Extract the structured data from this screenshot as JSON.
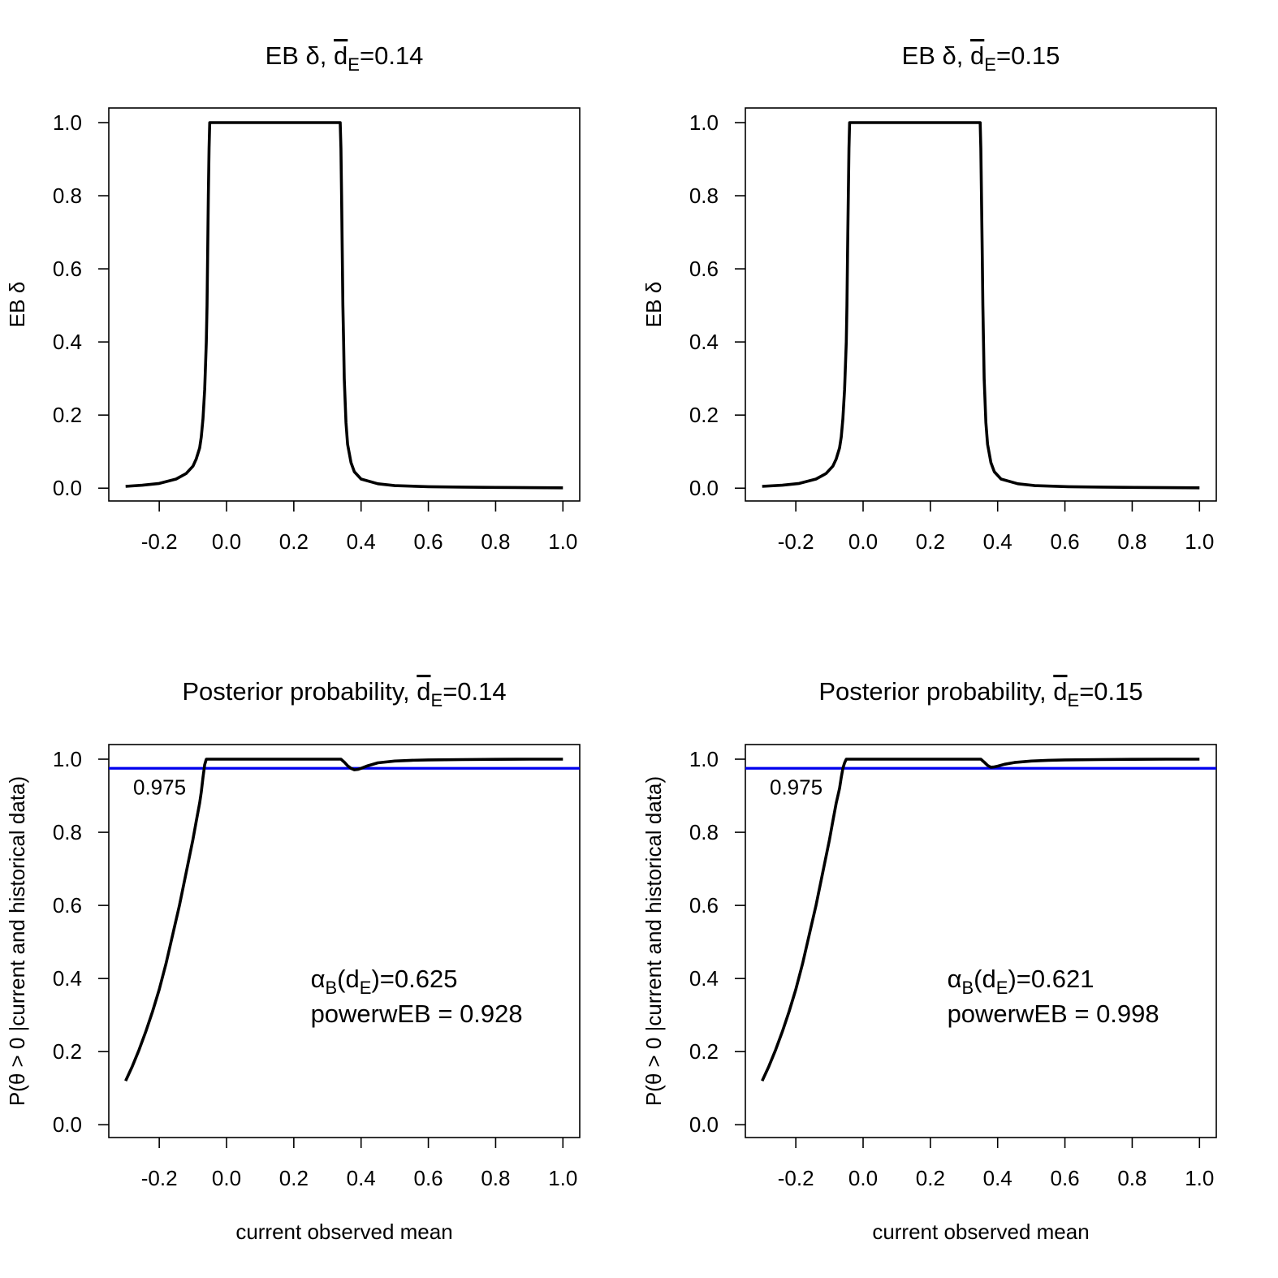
{
  "figure_title": "EB weight and posterior probability versus current observed mean",
  "chart_data": [
    {
      "id": "eb-014",
      "type": "line",
      "title_prefix": "EB δ, ",
      "title_var": "d",
      "title_sub": "E",
      "title_value": "=0.14",
      "xlabel": "",
      "ylabel": "EB δ",
      "xlim": [
        -0.35,
        1.05
      ],
      "ylim": [
        -0.035,
        1.04
      ],
      "xticks": [
        "-0.2",
        "0.0",
        "0.2",
        "0.4",
        "0.6",
        "0.8",
        "1.0"
      ],
      "yticks": [
        "0.0",
        "0.2",
        "0.4",
        "0.6",
        "0.8",
        "1.0"
      ],
      "series": [
        {
          "name": "EB delta",
          "color": "#000000",
          "x": [
            -0.3,
            -0.25,
            -0.2,
            -0.15,
            -0.12,
            -0.1,
            -0.09,
            -0.08,
            -0.075,
            -0.07,
            -0.065,
            -0.06,
            -0.058,
            -0.056,
            -0.054,
            -0.052,
            -0.05,
            0.0,
            0.1,
            0.2,
            0.3,
            0.338,
            0.34,
            0.342,
            0.344,
            0.346,
            0.348,
            0.35,
            0.355,
            0.36,
            0.37,
            0.38,
            0.4,
            0.45,
            0.5,
            0.6,
            0.7,
            0.8,
            0.9,
            1.0
          ],
          "y": [
            0.005,
            0.008,
            0.013,
            0.025,
            0.04,
            0.06,
            0.08,
            0.11,
            0.14,
            0.19,
            0.27,
            0.4,
            0.5,
            0.65,
            0.8,
            0.93,
            1.0,
            1.0,
            1.0,
            1.0,
            1.0,
            1.0,
            0.93,
            0.8,
            0.65,
            0.5,
            0.4,
            0.3,
            0.18,
            0.12,
            0.07,
            0.045,
            0.025,
            0.012,
            0.007,
            0.004,
            0.003,
            0.002,
            0.0015,
            0.001
          ]
        }
      ]
    },
    {
      "id": "eb-015",
      "type": "line",
      "title_prefix": "EB δ, ",
      "title_var": "d",
      "title_sub": "E",
      "title_value": "=0.15",
      "xlabel": "",
      "ylabel": "EB δ",
      "xlim": [
        -0.35,
        1.05
      ],
      "ylim": [
        -0.035,
        1.04
      ],
      "xticks": [
        "-0.2",
        "0.0",
        "0.2",
        "0.4",
        "0.6",
        "0.8",
        "1.0"
      ],
      "yticks": [
        "0.0",
        "0.2",
        "0.4",
        "0.6",
        "0.8",
        "1.0"
      ],
      "series": [
        {
          "name": "EB delta",
          "color": "#000000",
          "x": [
            -0.3,
            -0.24,
            -0.19,
            -0.14,
            -0.11,
            -0.09,
            -0.08,
            -0.07,
            -0.065,
            -0.06,
            -0.055,
            -0.05,
            -0.048,
            -0.046,
            -0.044,
            -0.042,
            -0.04,
            0.0,
            0.1,
            0.2,
            0.3,
            0.348,
            0.35,
            0.352,
            0.354,
            0.356,
            0.358,
            0.36,
            0.365,
            0.37,
            0.38,
            0.39,
            0.41,
            0.46,
            0.51,
            0.61,
            0.71,
            0.81,
            0.91,
            1.0
          ],
          "y": [
            0.005,
            0.008,
            0.013,
            0.025,
            0.04,
            0.06,
            0.08,
            0.11,
            0.14,
            0.19,
            0.27,
            0.4,
            0.5,
            0.65,
            0.8,
            0.93,
            1.0,
            1.0,
            1.0,
            1.0,
            1.0,
            1.0,
            0.93,
            0.8,
            0.65,
            0.5,
            0.4,
            0.3,
            0.18,
            0.12,
            0.07,
            0.045,
            0.025,
            0.012,
            0.007,
            0.004,
            0.003,
            0.002,
            0.0015,
            0.001
          ]
        }
      ]
    },
    {
      "id": "post-014",
      "type": "line",
      "title_prefix": "Posterior probability, ",
      "title_var": "d",
      "title_sub": "E",
      "title_value": "=0.14",
      "xlabel": "current observed mean",
      "ylabel": "P(θ > 0 |current and historical data)",
      "xlim": [
        -0.35,
        1.05
      ],
      "ylim": [
        -0.035,
        1.04
      ],
      "xticks": [
        "-0.2",
        "0.0",
        "0.2",
        "0.4",
        "0.6",
        "0.8",
        "1.0"
      ],
      "yticks": [
        "0.0",
        "0.2",
        "0.4",
        "0.6",
        "0.8",
        "1.0"
      ],
      "threshold": {
        "value": 0.975,
        "label": "0.975",
        "color": "#0000ee"
      },
      "annotations": {
        "alpha_greek": "α",
        "alpha_sub1": "B",
        "alpha_paren_open": "(d",
        "alpha_sub2": "E",
        "alpha_value": ")=0.625",
        "alpha_color": "#ff0000",
        "power_text": "powerwEB =  0.928",
        "power_color": "#00ee00"
      },
      "series": [
        {
          "name": "posterior probability",
          "color": "#000000",
          "x": [
            -0.3,
            -0.28,
            -0.26,
            -0.24,
            -0.22,
            -0.2,
            -0.18,
            -0.16,
            -0.14,
            -0.12,
            -0.1,
            -0.09,
            -0.08,
            -0.075,
            -0.07,
            -0.065,
            -0.06,
            0.0,
            0.1,
            0.2,
            0.3,
            0.34,
            0.35,
            0.36,
            0.37,
            0.38,
            0.39,
            0.4,
            0.42,
            0.45,
            0.5,
            0.55,
            0.6,
            0.7,
            0.8,
            0.9,
            1.0
          ],
          "y": [
            0.12,
            0.16,
            0.205,
            0.255,
            0.31,
            0.37,
            0.44,
            0.52,
            0.6,
            0.69,
            0.78,
            0.83,
            0.88,
            0.91,
            0.95,
            0.985,
            1.0,
            1.0,
            1.0,
            1.0,
            1.0,
            1.0,
            0.992,
            0.982,
            0.975,
            0.971,
            0.972,
            0.975,
            0.982,
            0.99,
            0.995,
            0.997,
            0.998,
            0.999,
            0.9995,
            1.0,
            1.0
          ]
        }
      ]
    },
    {
      "id": "post-015",
      "type": "line",
      "title_prefix": "Posterior probability, ",
      "title_var": "d",
      "title_sub": "E",
      "title_value": "=0.15",
      "xlabel": "current observed mean",
      "ylabel": "P(θ > 0 |current and historical data)",
      "xlim": [
        -0.35,
        1.05
      ],
      "ylim": [
        -0.035,
        1.04
      ],
      "xticks": [
        "-0.2",
        "0.0",
        "0.2",
        "0.4",
        "0.6",
        "0.8",
        "1.0"
      ],
      "yticks": [
        "0.0",
        "0.2",
        "0.4",
        "0.6",
        "0.8",
        "1.0"
      ],
      "threshold": {
        "value": 0.975,
        "label": "0.975",
        "color": "#0000ee"
      },
      "annotations": {
        "alpha_greek": "α",
        "alpha_sub1": "B",
        "alpha_paren_open": "(d",
        "alpha_sub2": "E",
        "alpha_value": ")=0.621",
        "alpha_color": "#ff0000",
        "power_text": "powerwEB =  0.998",
        "power_color": "#00ee00"
      },
      "series": [
        {
          "name": "posterior probability",
          "color": "#000000",
          "x": [
            -0.3,
            -0.28,
            -0.26,
            -0.24,
            -0.22,
            -0.2,
            -0.18,
            -0.16,
            -0.14,
            -0.12,
            -0.1,
            -0.09,
            -0.08,
            -0.07,
            -0.065,
            -0.06,
            -0.055,
            -0.05,
            0.0,
            0.1,
            0.2,
            0.3,
            0.35,
            0.36,
            0.37,
            0.38,
            0.39,
            0.4,
            0.42,
            0.45,
            0.5,
            0.55,
            0.6,
            0.7,
            0.8,
            0.9,
            1.0
          ],
          "y": [
            0.12,
            0.16,
            0.205,
            0.255,
            0.31,
            0.37,
            0.44,
            0.52,
            0.6,
            0.69,
            0.78,
            0.83,
            0.88,
            0.92,
            0.95,
            0.975,
            0.99,
            1.0,
            1.0,
            1.0,
            1.0,
            1.0,
            1.0,
            0.992,
            0.983,
            0.978,
            0.979,
            0.981,
            0.986,
            0.991,
            0.995,
            0.997,
            0.998,
            0.999,
            0.9995,
            1.0,
            1.0
          ]
        }
      ]
    }
  ]
}
